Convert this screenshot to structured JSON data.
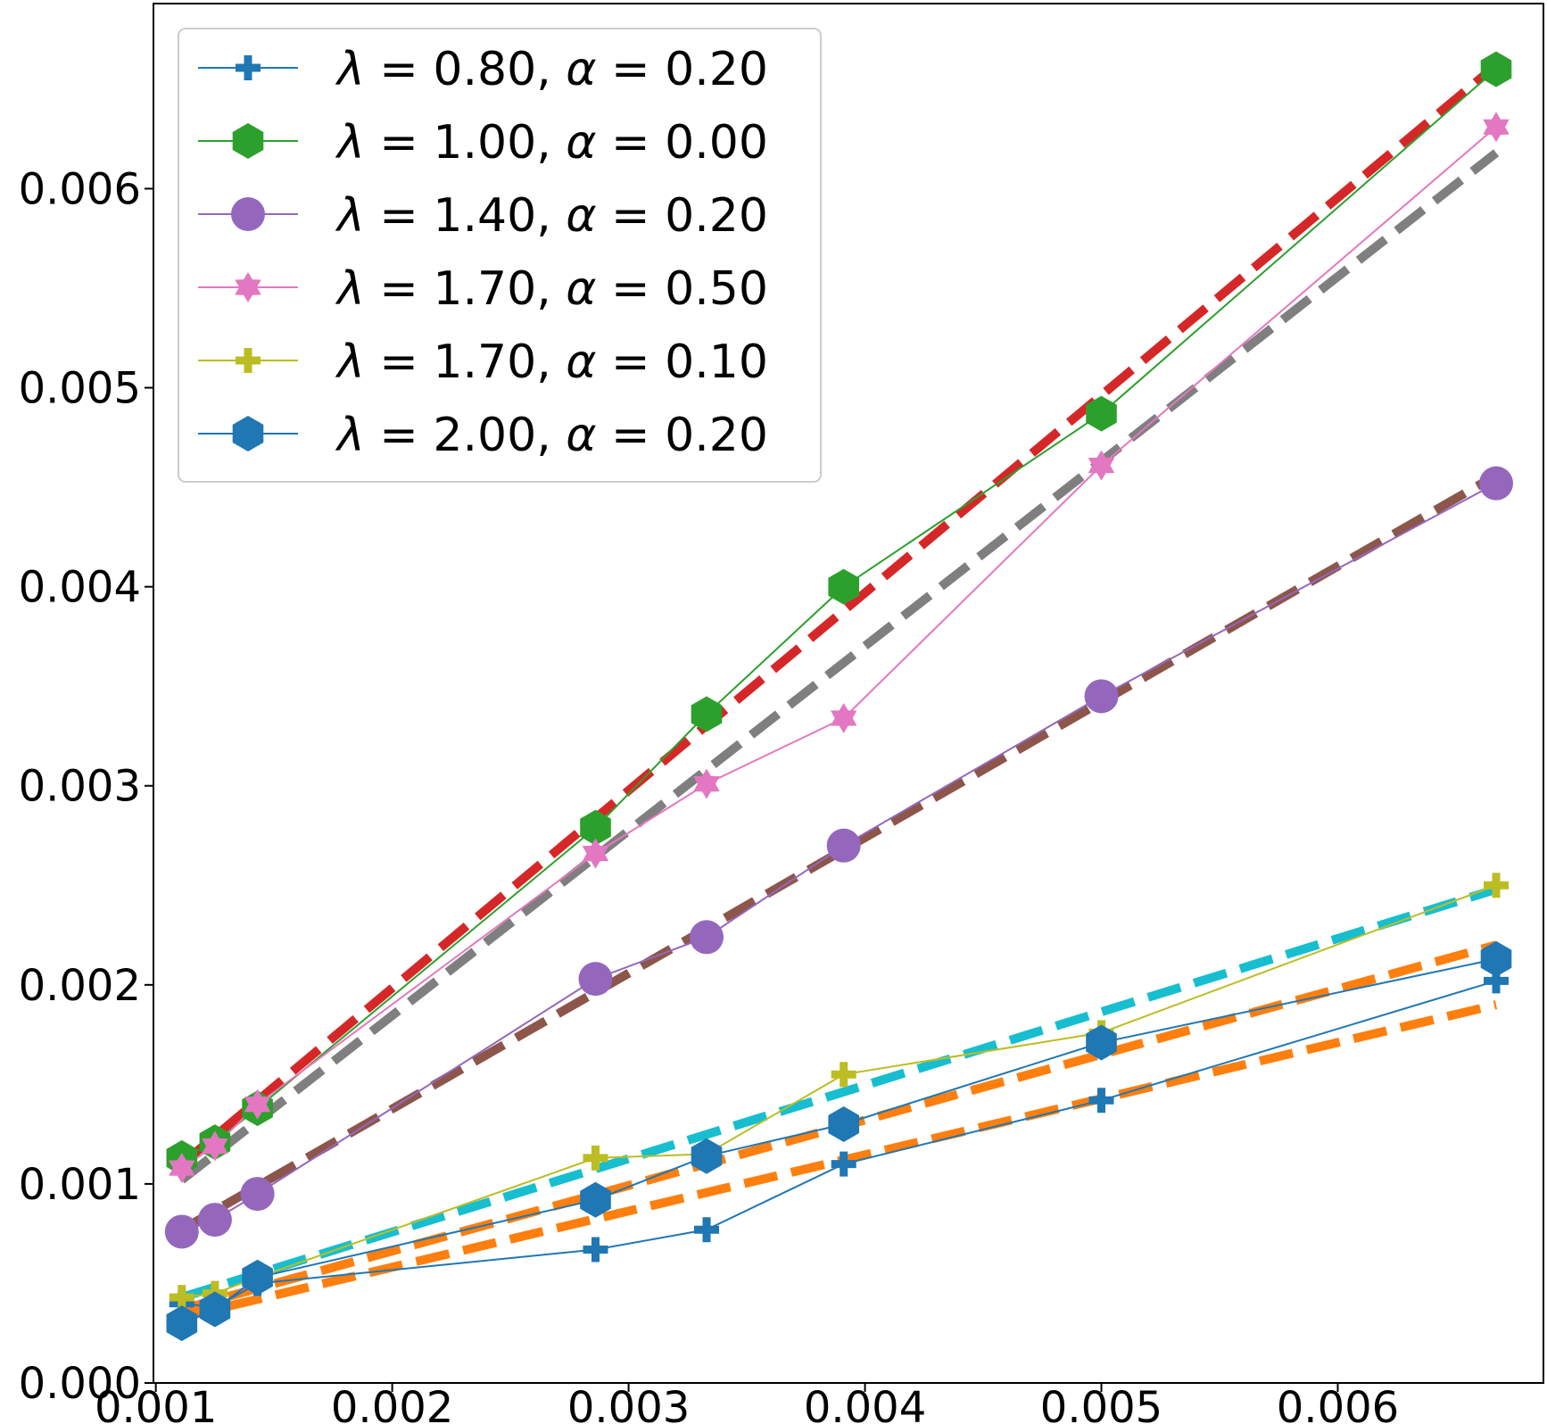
{
  "chart_data": {
    "type": "line",
    "title": "",
    "xlabel": "",
    "ylabel": "",
    "xlim": [
      0.00099,
      0.00687
    ],
    "ylim": [
      0.0,
      0.00693
    ],
    "xticks": [
      0.001,
      0.002,
      0.003,
      0.004,
      0.005,
      0.006
    ],
    "xtick_labels": [
      "0.001",
      "0.002",
      "0.003",
      "0.004",
      "0.005",
      "0.006"
    ],
    "yticks": [
      0.0,
      0.001,
      0.002,
      0.003,
      0.004,
      0.005,
      0.006
    ],
    "ytick_labels": [
      "0.000",
      "0.001",
      "0.002",
      "0.003",
      "0.004",
      "0.005",
      "0.006"
    ],
    "legend_position": "top-left",
    "x": [
      0.00111,
      0.00125,
      0.00143,
      0.00286,
      0.00333,
      0.00391,
      0.005,
      0.00667
    ],
    "series": [
      {
        "name": "λ = 0.80, α = 0.20",
        "lambda": "0.80",
        "alpha": "0.20",
        "color": "#1f77b4",
        "marker": "plus-filled",
        "values": [
          0.0004,
          0.00038,
          0.0005,
          0.00067,
          0.00077,
          0.0011,
          0.00142,
          0.00202
        ]
      },
      {
        "name": "λ = 1.00, α = 0.00",
        "lambda": "1.00",
        "alpha": "0.00",
        "color": "#2ca02c",
        "marker": "hexagon",
        "values": [
          0.00113,
          0.00121,
          0.00138,
          0.00279,
          0.00336,
          0.004,
          0.00487,
          0.0066
        ]
      },
      {
        "name": "λ = 1.40, α = 0.20",
        "lambda": "1.40",
        "alpha": "0.20",
        "color": "#9467bd",
        "marker": "circle",
        "values": [
          0.00076,
          0.00082,
          0.00095,
          0.00203,
          0.00224,
          0.0027,
          0.00345,
          0.00452
        ]
      },
      {
        "name": "λ = 1.70, α = 0.50",
        "lambda": "1.70",
        "alpha": "0.50",
        "color": "#e377c2",
        "marker": "star",
        "values": [
          0.00108,
          0.00119,
          0.0014,
          0.00266,
          0.00301,
          0.00334,
          0.00461,
          0.00631
        ]
      },
      {
        "name": "λ = 1.70, α = 0.10",
        "lambda": "1.70",
        "alpha": "0.10",
        "color": "#bcbd22",
        "marker": "plus-filled",
        "values": [
          0.00043,
          0.00045,
          0.00053,
          0.00113,
          0.00115,
          0.00155,
          0.00176,
          0.0025
        ]
      },
      {
        "name": "λ = 2.00, α = 0.20",
        "lambda": "2.00",
        "alpha": "0.20",
        "color": "#1f77b4",
        "marker": "hexagon",
        "values": [
          0.0003,
          0.00037,
          0.00053,
          0.00092,
          0.00114,
          0.0013,
          0.00171,
          0.00213
        ]
      }
    ],
    "fit_lines": [
      {
        "color": "#d62728",
        "x": [
          0.00111,
          0.00667
        ],
        "y": [
          0.0011,
          0.00662
        ]
      },
      {
        "color": "#7f7f7f",
        "x": [
          0.00111,
          0.00667
        ],
        "y": [
          0.00102,
          0.00618
        ]
      },
      {
        "color": "#8c564b",
        "x": [
          0.00111,
          0.00667
        ],
        "y": [
          0.00077,
          0.00456
        ]
      },
      {
        "color": "#17becf",
        "x": [
          0.00111,
          0.00667
        ],
        "y": [
          0.00043,
          0.00248
        ]
      },
      {
        "color": "#ff7f0e",
        "x": [
          0.00111,
          0.00667
        ],
        "y": [
          0.00037,
          0.0022
        ]
      },
      {
        "color": "#ff7f0e",
        "x": [
          0.00111,
          0.00667
        ],
        "y": [
          0.00033,
          0.0019
        ]
      }
    ]
  }
}
